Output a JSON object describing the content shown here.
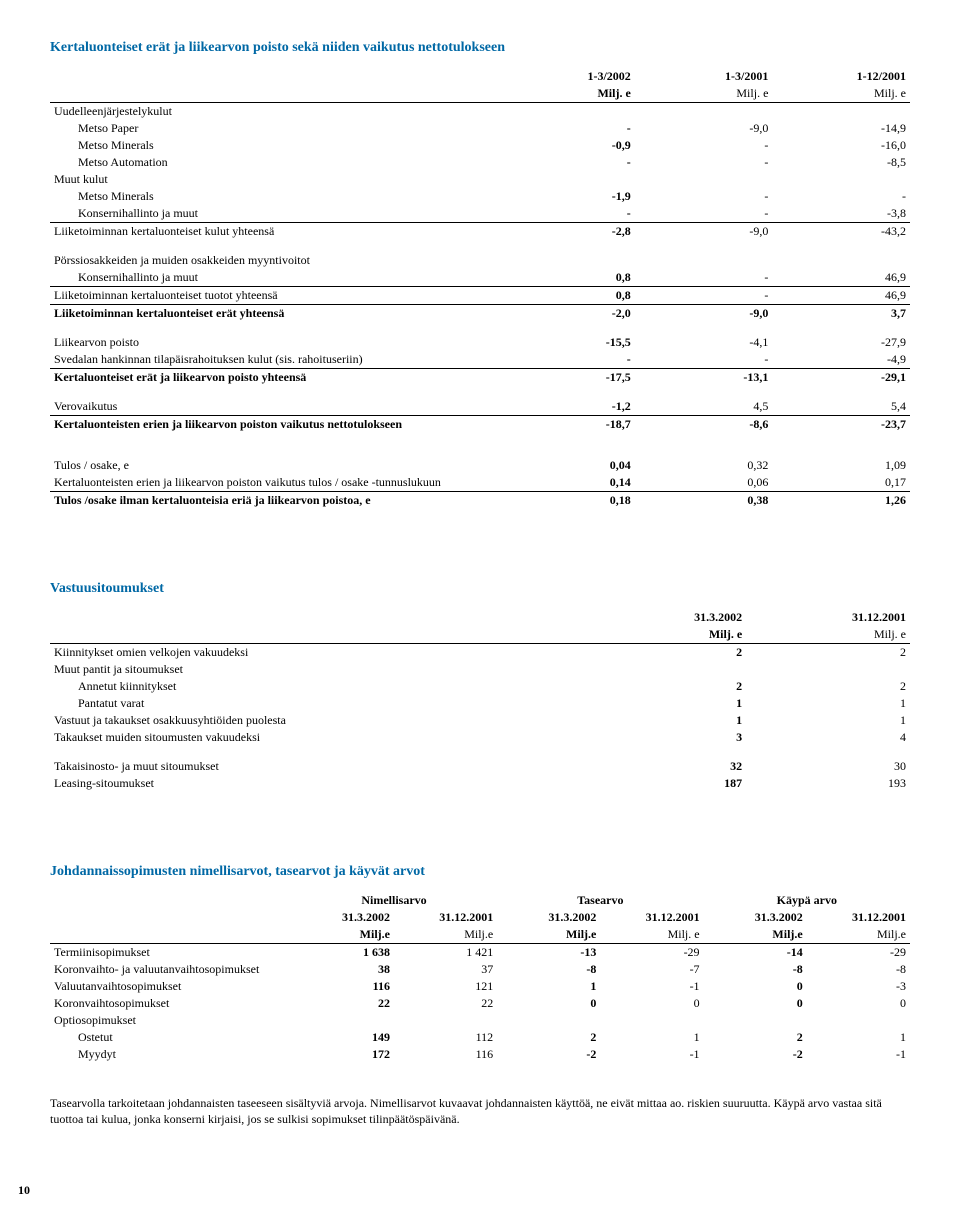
{
  "section1": {
    "title": "Kertaluonteiset erät ja liikearvon poisto sekä niiden vaikutus nettotulokseen",
    "col_headers": {
      "c1": [
        "1-3/2002",
        "Milj. e"
      ],
      "c2": [
        "1-3/2001",
        "Milj. e"
      ],
      "c3": [
        "1-12/2001",
        "Milj. e"
      ]
    },
    "rows": [
      {
        "label": "Uudelleenjärjestelykulut",
        "v": [
          "",
          "",
          ""
        ],
        "class": ""
      },
      {
        "label": "Metso Paper",
        "v": [
          "-",
          "-9,0",
          "-14,9"
        ],
        "class": "indent1"
      },
      {
        "label": "Metso Minerals",
        "v": [
          "-0,9",
          "-",
          "-16,0"
        ],
        "class": "indent1"
      },
      {
        "label": "Metso Automation",
        "v": [
          "-",
          "-",
          "-8,5"
        ],
        "class": "indent1"
      },
      {
        "label": "Muut kulut",
        "v": [
          "",
          "",
          ""
        ],
        "class": ""
      },
      {
        "label": "Metso Minerals",
        "v": [
          "-1,9",
          "-",
          "-"
        ],
        "class": "indent1"
      },
      {
        "label": "Konsernihallinto ja muut",
        "v": [
          "-",
          "-",
          "-3,8"
        ],
        "class": "indent1"
      },
      {
        "label": "Liiketoiminnan kertaluonteiset kulut yhteensä",
        "v": [
          "-2,8",
          "-9,0",
          "-43,2"
        ],
        "class": "",
        "rule": true
      },
      {
        "spacer": true
      },
      {
        "label": "Pörssiosakkeiden ja muiden osakkeiden myyntivoitot",
        "v": [
          "",
          "",
          ""
        ],
        "class": ""
      },
      {
        "label": "Konsernihallinto ja muut",
        "v": [
          "0,8",
          "-",
          "46,9"
        ],
        "class": "indent1"
      },
      {
        "label": "Liiketoiminnan kertaluonteiset tuotot yhteensä",
        "v": [
          "0,8",
          "-",
          "46,9"
        ],
        "class": "",
        "rule": true
      },
      {
        "label": "Liiketoiminnan kertaluonteiset erät yhteensä",
        "v": [
          "-2,0",
          "-9,0",
          "3,7"
        ],
        "class": "bold",
        "rule": true
      },
      {
        "spacer": true
      },
      {
        "label": "Liikearvon poisto",
        "v": [
          "-15,5",
          "-4,1",
          "-27,9"
        ],
        "class": ""
      },
      {
        "label": "Svedalan hankinnan tilapäisrahoituksen kulut (sis. rahoituseriin)",
        "v": [
          "-",
          "-",
          "-4,9"
        ],
        "class": ""
      },
      {
        "label": "Kertaluonteiset erät ja liikearvon poisto yhteensä",
        "v": [
          "-17,5",
          "-13,1",
          "-29,1"
        ],
        "class": "bold",
        "rule": true
      },
      {
        "spacer": true
      },
      {
        "label": "Verovaikutus",
        "v": [
          "-1,2",
          "4,5",
          "5,4"
        ],
        "class": ""
      },
      {
        "label": "Kertaluonteisten erien ja liikearvon poiston vaikutus nettotulokseen",
        "v": [
          "-18,7",
          "-8,6",
          "-23,7"
        ],
        "class": "bold",
        "rule": true
      },
      {
        "spacer": true
      },
      {
        "spacer": true
      },
      {
        "label": "Tulos / osake, e",
        "v": [
          "0,04",
          "0,32",
          "1,09"
        ],
        "class": ""
      },
      {
        "label": "Kertaluonteisten erien ja liikearvon poiston vaikutus tulos / osake -tunnuslukuun",
        "v": [
          "0,14",
          "0,06",
          "0,17"
        ],
        "class": ""
      },
      {
        "label": "Tulos /osake ilman kertaluonteisia eriä ja liikearvon poistoa, e",
        "v": [
          "0,18",
          "0,38",
          "1,26"
        ],
        "class": "bold",
        "rule": true
      }
    ]
  },
  "section2": {
    "title": "Vastuusitoumukset",
    "col_headers": {
      "c1": [
        "31.3.2002",
        "Milj. e"
      ],
      "c2": [
        "31.12.2001",
        "Milj. e"
      ]
    },
    "rows": [
      {
        "label": "Kiinnitykset omien velkojen vakuudeksi",
        "v": [
          "2",
          "2"
        ],
        "class": "",
        "ruletop": true
      },
      {
        "label": "Muut pantit ja sitoumukset",
        "v": [
          "",
          ""
        ],
        "class": ""
      },
      {
        "label": "Annetut kiinnitykset",
        "v": [
          "2",
          "2"
        ],
        "class": "indent1"
      },
      {
        "label": "Pantatut varat",
        "v": [
          "1",
          "1"
        ],
        "class": "indent1"
      },
      {
        "label": "Vastuut ja takaukset osakkuusyhtiöiden puolesta",
        "v": [
          "1",
          "1"
        ],
        "class": ""
      },
      {
        "label": "Takaukset muiden sitoumusten vakuudeksi",
        "v": [
          "3",
          "4"
        ],
        "class": ""
      },
      {
        "spacer": true
      },
      {
        "label": "Takaisinosto- ja muut sitoumukset",
        "v": [
          "32",
          "30"
        ],
        "class": ""
      },
      {
        "label": "Leasing-sitoumukset",
        "v": [
          "187",
          "193"
        ],
        "class": ""
      }
    ]
  },
  "section3": {
    "title": "Johdannaissopimusten nimellisarvot, tasearvot ja käyvät arvot",
    "group_headers": [
      "Nimellisarvo",
      "Tasearvo",
      "Käypä arvo"
    ],
    "sub_headers": {
      "a": [
        "31.3.2002",
        "Milj.e"
      ],
      "b": [
        "31.12.2001",
        "Milj.e"
      ],
      "c": [
        "31.3.2002",
        "Milj.e"
      ],
      "d": [
        "31.12.2001",
        "Milj. e"
      ],
      "e": [
        "31.3.2002",
        "Milj.e"
      ],
      "f": [
        "31.12.2001",
        "Milj.e"
      ]
    },
    "rows": [
      {
        "label": "Termiinisopimukset",
        "v": [
          "1 638",
          "1 421",
          "-13",
          "-29",
          "-14",
          "-29"
        ],
        "ruletop": true
      },
      {
        "label": "Koronvaihto- ja valuutanvaihtosopimukset",
        "v": [
          "38",
          "37",
          "-8",
          "-7",
          "-8",
          "-8"
        ]
      },
      {
        "label": "Valuutanvaihtosopimukset",
        "v": [
          "116",
          "121",
          "1",
          "-1",
          "0",
          "-3"
        ]
      },
      {
        "label": "Koronvaihtosopimukset",
        "v": [
          "22",
          "22",
          "0",
          "0",
          "0",
          "0"
        ]
      },
      {
        "label": "Optiosopimukset",
        "v": [
          "",
          "",
          "",
          "",
          "",
          ""
        ]
      },
      {
        "label": "Ostetut",
        "v": [
          "149",
          "112",
          "2",
          "1",
          "2",
          "1"
        ],
        "class": "indent1"
      },
      {
        "label": "Myydyt",
        "v": [
          "172",
          "116",
          "-2",
          "-1",
          "-2",
          "-1"
        ],
        "class": "indent1"
      }
    ],
    "footer": "Tasearvolla tarkoitetaan johdannaisten taseeseen sisältyviä arvoja. Nimellisarvot kuvaavat johdannaisten käyttöä, ne eivät mittaa ao. riskien suuruutta. Käypä arvo vastaa sitä tuottoa tai kulua, jonka konserni kirjaisi, jos se sulkisi sopimukset tilinpäätöspäivänä."
  },
  "page_num": "10"
}
